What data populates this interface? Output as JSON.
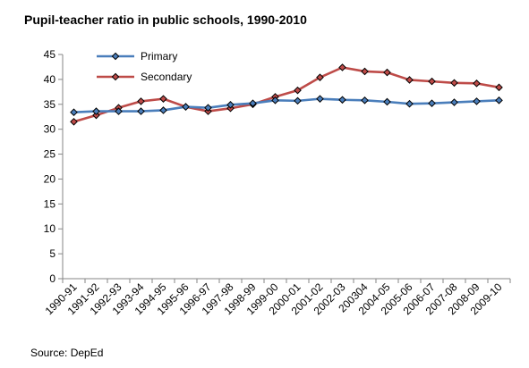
{
  "chart_data": {
    "type": "line",
    "title": "Pupil-teacher ratio in public schools, 1990-2010",
    "xlabel": "",
    "ylabel": "",
    "ylim": [
      0,
      45
    ],
    "yticks": [
      0,
      5,
      10,
      15,
      20,
      25,
      30,
      35,
      40,
      45
    ],
    "grid": false,
    "legend_position": "top-left",
    "categories": [
      "1990-91",
      "1991-92",
      "1992-93",
      "1993-94",
      "1994-95",
      "1995-96",
      "1996-97",
      "1997-98",
      "1998-99",
      "1999-00",
      "2000-01",
      "2001-02",
      "2002-03",
      "200304",
      "2004-05",
      "2005-06",
      "2006-07",
      "2007-08",
      "2008-09",
      "2009-10"
    ],
    "series": [
      {
        "name": "Primary",
        "color": "#4a7ebb",
        "marker": "diamond",
        "values": [
          33.4,
          33.6,
          33.6,
          33.6,
          33.8,
          34.5,
          34.3,
          34.9,
          35.2,
          35.8,
          35.7,
          36.1,
          35.9,
          35.8,
          35.5,
          35.1,
          35.2,
          35.4,
          35.6,
          35.8
        ]
      },
      {
        "name": "Secondary",
        "color": "#be4b48",
        "marker": "diamond",
        "values": [
          31.5,
          32.8,
          34.3,
          35.6,
          36.1,
          34.5,
          33.6,
          34.2,
          35.0,
          36.5,
          37.8,
          40.4,
          42.4,
          41.6,
          41.4,
          39.9,
          39.6,
          39.3,
          39.2,
          38.4
        ]
      }
    ],
    "source": "Source: DepEd"
  }
}
